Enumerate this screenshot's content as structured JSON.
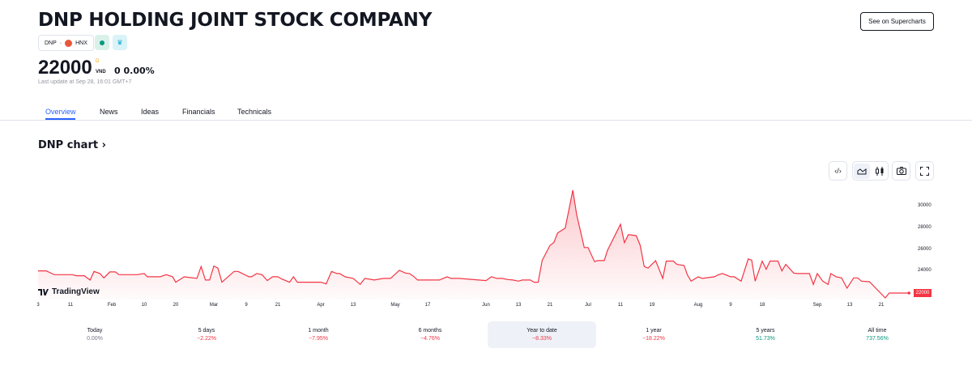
{
  "header": {
    "title": "DNP HOLDING JOINT STOCK COMPANY",
    "supercharts_button": "See on Supercharts",
    "symbol": "DNP",
    "separator": "·",
    "exchange": "HNX",
    "price": "22000",
    "price_marker": "D",
    "currency": "VND",
    "change": "0 0.00%",
    "last_update": "Last update at Sep 28, 16:01 GMT+7",
    "status_color": "#089981"
  },
  "tabs": [
    {
      "label": "Overview",
      "active": true
    },
    {
      "label": "News"
    },
    {
      "label": "Ideas"
    },
    {
      "label": "Financials"
    },
    {
      "label": "Technicals"
    }
  ],
  "chart_section": {
    "heading": "DNP chart",
    "heading_chevron": "›",
    "toolbar": [
      "embed-code-icon",
      "area-chart-icon",
      "candles-icon",
      "camera-icon",
      "fullscreen-icon"
    ],
    "logo_text": "TradingView"
  },
  "chart_data": {
    "type": "area",
    "line_color": "#f23645",
    "grid": false,
    "y_ticks": [
      "30000",
      "28000",
      "26000",
      "24000"
    ],
    "ylim": [
      21500,
      31500
    ],
    "last_value_label": "22000",
    "x_ticks": [
      "3",
      "11",
      "Feb",
      "10",
      "20",
      "Mar",
      "9",
      "21",
      "Apr",
      "13",
      "May",
      "17",
      "Jun",
      "13",
      "21",
      "Jul",
      "11",
      "19",
      "Aug",
      "9",
      "18",
      "Sep",
      "13",
      "21"
    ],
    "points": [
      [
        "Jan 3",
        24050
      ],
      [
        "Jan 5",
        24050
      ],
      [
        "Jan 7",
        23700
      ],
      [
        "Jan 12",
        23700
      ],
      [
        "Jan 14",
        23600
      ],
      [
        "Jan 18",
        23600
      ],
      [
        "Jan 21",
        23200
      ],
      [
        "Jan 23",
        24000
      ],
      [
        "Jan 26",
        23800
      ],
      [
        "Jan 28",
        23400
      ],
      [
        "Jan 31",
        23950
      ],
      [
        "Feb 2",
        23950
      ],
      [
        "Feb 3",
        23700
      ],
      [
        "Feb 8",
        23700
      ],
      [
        "Feb 10",
        23800
      ],
      [
        "Feb 11",
        23500
      ],
      [
        "Feb 15",
        23500
      ],
      [
        "Feb 17",
        23700
      ],
      [
        "Feb 19",
        23500
      ],
      [
        "Feb 20",
        23000
      ],
      [
        "Feb 22",
        23500
      ],
      [
        "Feb 23",
        23450
      ],
      [
        "Feb 25",
        23350
      ],
      [
        "Feb 26",
        24450
      ],
      [
        "Feb 27",
        23200
      ],
      [
        "Feb 28",
        23200
      ],
      [
        "Mar 1",
        24500
      ],
      [
        "Mar 2",
        24300
      ],
      [
        "Mar 3",
        23000
      ],
      [
        "Mar 6",
        24000
      ],
      [
        "Mar 7",
        24000
      ],
      [
        "Mar 10",
        23500
      ],
      [
        "Mar 11",
        23500
      ],
      [
        "Mar 13",
        23800
      ],
      [
        "Mar 15",
        23700
      ],
      [
        "Mar 17",
        23150
      ],
      [
        "Mar 19",
        23500
      ],
      [
        "Mar 21",
        23500
      ],
      [
        "Mar 22",
        23300
      ],
      [
        "Mar 24",
        23000
      ],
      [
        "Mar 25",
        23500
      ],
      [
        "Mar 26",
        23000
      ],
      [
        "Apr 1",
        23000
      ],
      [
        "Apr 3",
        22850
      ],
      [
        "Apr 5",
        24000
      ],
      [
        "Apr 7",
        23800
      ],
      [
        "Apr 8",
        23800
      ],
      [
        "Apr 10",
        23500
      ],
      [
        "Apr 13",
        23350
      ],
      [
        "Apr 16",
        22800
      ],
      [
        "Apr 18",
        23350
      ],
      [
        "Apr 22",
        23200
      ],
      [
        "Apr 26",
        23350
      ],
      [
        "Apr 29",
        23350
      ],
      [
        "May 3",
        24100
      ],
      [
        "May 6",
        23850
      ],
      [
        "May 8",
        23800
      ],
      [
        "May 10",
        23550
      ],
      [
        "May 12",
        23200
      ],
      [
        "May 17",
        23200
      ],
      [
        "May 20",
        23200
      ],
      [
        "May 22",
        23500
      ],
      [
        "May 23",
        23350
      ],
      [
        "May 25",
        23350
      ],
      [
        "Jun 1",
        23150
      ],
      [
        "Jun 3",
        23500
      ],
      [
        "Jun 5",
        23350
      ],
      [
        "Jun 7",
        23350
      ],
      [
        "Jun 9",
        23250
      ],
      [
        "Jun 11",
        23200
      ],
      [
        "Jun 13",
        23100
      ],
      [
        "Jun 14",
        23200
      ],
      [
        "Jun 16",
        23200
      ],
      [
        "Jun 17",
        23000
      ],
      [
        "Jun 18",
        23000
      ],
      [
        "Jun 19",
        25000
      ],
      [
        "Jun 21",
        26400
      ],
      [
        "Jun 22",
        26650
      ],
      [
        "Jun 23",
        27550
      ],
      [
        "Jun 25",
        28000
      ],
      [
        "Jun 27",
        31500
      ],
      [
        "Jun 28",
        29250
      ],
      [
        "Jun 30",
        26200
      ],
      [
        "Jul 1",
        26200
      ],
      [
        "Jul 3",
        24900
      ],
      [
        "Jul 4",
        25000
      ],
      [
        "Jul 6",
        25000
      ],
      [
        "Jul 7",
        25950
      ],
      [
        "Jul 11",
        28350
      ],
      [
        "Jul 12",
        26650
      ],
      [
        "Jul 13",
        27400
      ],
      [
        "Jul 15",
        27300
      ],
      [
        "Jul 16",
        26400
      ],
      [
        "Jul 17",
        24450
      ],
      [
        "Jul 18",
        24300
      ],
      [
        "Jul 20",
        25000
      ],
      [
        "Jul 22",
        23350
      ],
      [
        "Jul 23",
        24950
      ],
      [
        "Jul 25",
        24950
      ],
      [
        "Jul 26",
        24650
      ],
      [
        "Jul 28",
        24550
      ],
      [
        "Jul 29",
        23650
      ],
      [
        "Jul 30",
        23100
      ],
      [
        "Aug 1",
        23500
      ],
      [
        "Aug 2",
        23350
      ],
      [
        "Aug 5",
        23500
      ],
      [
        "Aug 6",
        23700
      ],
      [
        "Aug 7",
        23800
      ],
      [
        "Aug 9",
        23500
      ],
      [
        "Aug 10",
        23500
      ],
      [
        "Aug 12",
        23100
      ],
      [
        "Aug 14",
        25150
      ],
      [
        "Aug 15",
        25050
      ],
      [
        "Aug 16",
        23100
      ],
      [
        "Aug 18",
        24950
      ],
      [
        "Aug 19",
        24200
      ],
      [
        "Aug 20",
        24950
      ],
      [
        "Aug 22",
        24950
      ],
      [
        "Aug 23",
        24050
      ],
      [
        "Aug 24",
        24650
      ],
      [
        "Aug 26",
        23850
      ],
      [
        "Aug 27",
        23800
      ],
      [
        "Aug 30",
        23800
      ],
      [
        "Aug 31",
        22800
      ],
      [
        "Sep 1",
        23800
      ],
      [
        "Sep 3",
        23100
      ],
      [
        "Sep 5",
        22800
      ],
      [
        "Sep 6",
        23800
      ],
      [
        "Sep 8",
        23500
      ],
      [
        "Sep 10",
        23400
      ],
      [
        "Sep 12",
        22450
      ],
      [
        "Sep 14",
        23400
      ],
      [
        "Sep 15",
        23400
      ],
      [
        "Sep 16",
        23100
      ],
      [
        "Sep 18",
        23050
      ],
      [
        "Sep 22",
        21550
      ],
      [
        "Sep 23",
        22000
      ],
      [
        "Sep 25",
        22000
      ],
      [
        "Sep 28",
        22000
      ]
    ]
  },
  "periods": [
    {
      "label": "Today",
      "value": "0.00%",
      "color": "#787b86"
    },
    {
      "label": "5 days",
      "value": "−2.22%",
      "color": "#f23645"
    },
    {
      "label": "1 month",
      "value": "−7.95%",
      "color": "#f23645"
    },
    {
      "label": "6 months",
      "value": "−4.76%",
      "color": "#f23645"
    },
    {
      "label": "Year to date",
      "value": "−8.33%",
      "color": "#f23645",
      "active": true
    },
    {
      "label": "1 year",
      "value": "−18.22%",
      "color": "#f23645"
    },
    {
      "label": "5 years",
      "value": "51.73%",
      "color": "#089981"
    },
    {
      "label": "All time",
      "value": "737.56%",
      "color": "#089981"
    }
  ]
}
